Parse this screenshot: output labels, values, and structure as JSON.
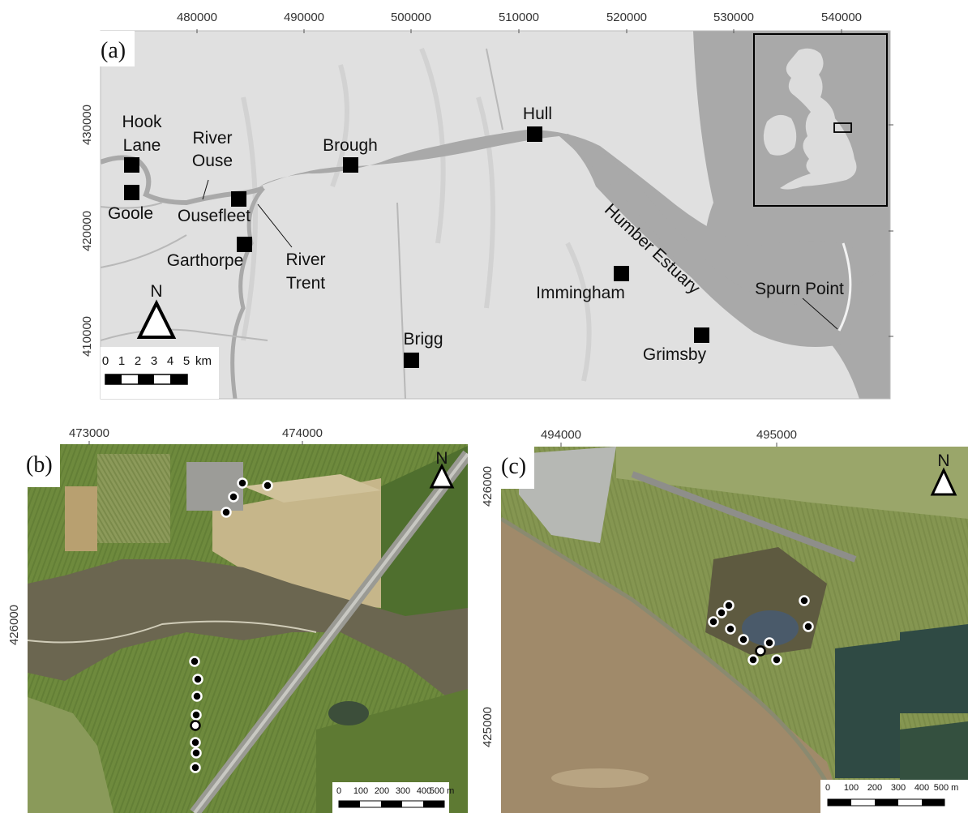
{
  "panel_a": {
    "label": "(a)",
    "x_ticks": [
      "480000",
      "490000",
      "500000",
      "510000",
      "520000",
      "530000",
      "540000"
    ],
    "y_ticks": [
      "430000",
      "420000",
      "410000"
    ],
    "places": {
      "hook_line1": "Hook",
      "hook_line2": "Lane",
      "goole": "Goole",
      "river_ouse_line1": "River",
      "river_ouse_line2": "Ouse",
      "ousefleet": "Ousefleet",
      "garthorpe": "Garthorpe",
      "river_trent_line1": "River",
      "river_trent_line2": "Trent",
      "brough": "Brough",
      "hull": "Hull",
      "humber_estuary": "Humber Estuary",
      "immingham": "Immingham",
      "spurn_point": "Spurn Point",
      "grimsby": "Grimsby",
      "brigg": "Brigg"
    },
    "north": "N",
    "scale": {
      "t0": "0",
      "t1": "1",
      "t2": "2",
      "t3": "3",
      "t4": "4",
      "t5": "5",
      "unit": "km"
    }
  },
  "panel_b": {
    "label": "(b)",
    "x_ticks": [
      "473000",
      "474000"
    ],
    "y_ticks": [
      "426000"
    ],
    "north": "N",
    "scale": {
      "t0": "0",
      "t1": "100",
      "t2": "200",
      "t3": "300",
      "t4": "400",
      "t5": "500 m"
    }
  },
  "panel_c": {
    "label": "(c)",
    "x_ticks": [
      "494000",
      "495000"
    ],
    "y_ticks": [
      "426000",
      "425000"
    ],
    "north": "N",
    "scale": {
      "t0": "0",
      "t1": "100",
      "t2": "200",
      "t3": "300",
      "t4": "400",
      "t5": "500 m"
    }
  },
  "colors": {
    "land": "#e2e2e2",
    "water": "#a9a9a9",
    "fields_b": "#6f8a3e",
    "fields_c": "#7d8f4c",
    "river_b": "#6b6650",
    "estuary_c": "#a08a6a"
  }
}
